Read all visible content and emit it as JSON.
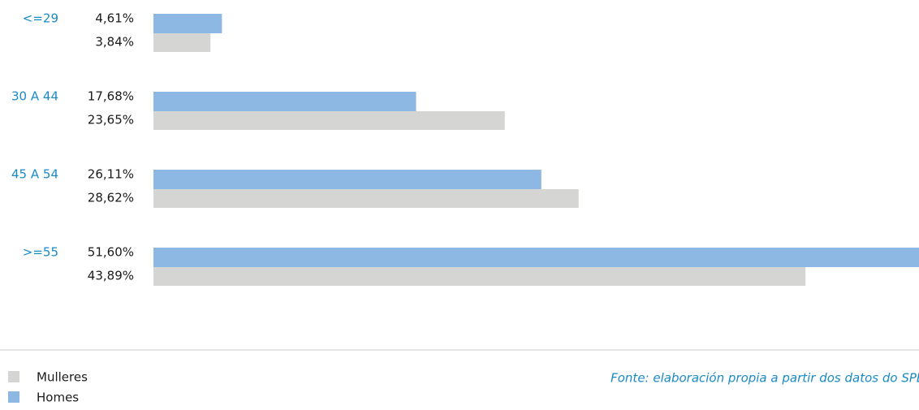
{
  "chart_data": {
    "type": "bar",
    "orientation": "horizontal",
    "categories": [
      "<=29",
      "30 A 44",
      "45 A 54",
      ">=55"
    ],
    "series": [
      {
        "name": "Homes",
        "color": "#8db8e4",
        "values": [
          4.61,
          17.68,
          26.11,
          51.6
        ],
        "value_labels": [
          "4,61%",
          "17,68%",
          "26,11%",
          "51,60%"
        ]
      },
      {
        "name": "Mulleres",
        "color": "#d5d5d3",
        "values": [
          3.84,
          23.65,
          28.62,
          43.89
        ],
        "value_labels": [
          "3,84%",
          "23,65%",
          "28,62%",
          "43,89%"
        ]
      }
    ],
    "source": "Fonte: elaboración propia a partir dos datos do SPEG"
  }
}
